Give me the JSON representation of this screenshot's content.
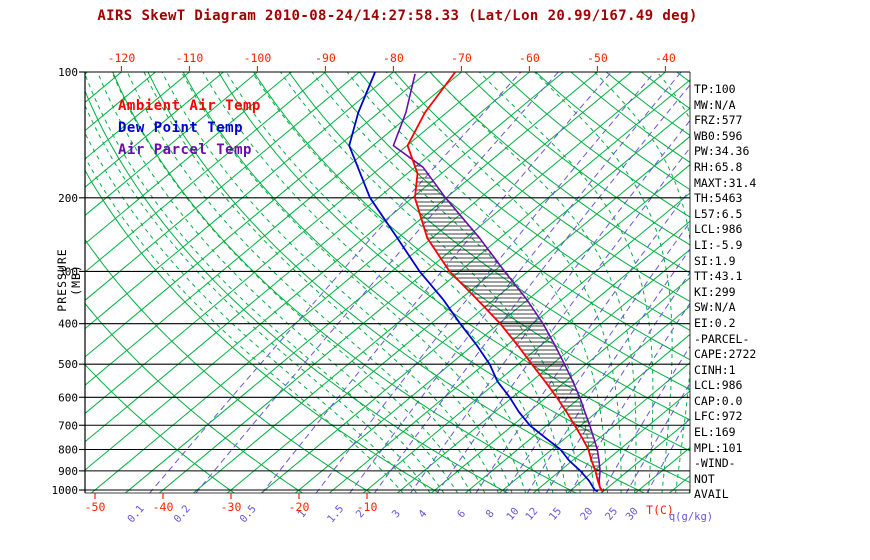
{
  "title": "AIRS SkewT Diagram 2010-08-24/14:27:58.33 (Lat/Lon 20.99/167.49 deg)",
  "legend": {
    "ambient": "Ambient Air Temp",
    "dewpoint": "Dew Point Temp",
    "parcel": "Air Parcel Temp"
  },
  "axes": {
    "pressure_label": "PRESSURE (MB)",
    "temp_label": "T(C)",
    "mixing_label": "q(g/kg)",
    "pressure_ticks": [
      100,
      200,
      300,
      400,
      500,
      600,
      700,
      800,
      900,
      1000
    ],
    "top_temp_ticks": [
      -120,
      -110,
      -100,
      -90,
      -80,
      -70,
      -60,
      -50,
      -40
    ],
    "bottom_temp_ticks": [
      -50,
      -40,
      -30,
      -20,
      -10
    ],
    "mixing_ticks": [
      0.1,
      0.2,
      0.5,
      1,
      1.5,
      2,
      3,
      4,
      6,
      8,
      10,
      12,
      15,
      20,
      25,
      30
    ]
  },
  "stats": [
    "TP:100",
    "MW:N/A",
    "FRZ:577",
    "WB0:596",
    "PW:34.36",
    "RH:65.8",
    "MAXT:31.4",
    "TH:5463",
    "L57:6.5",
    "LCL:986",
    "LI:-5.9",
    "SI:1.9",
    "TT:43.1",
    "KI:299",
    "SW:N/A",
    "EI:0.2",
    "-PARCEL-",
    "CAPE:2722",
    "CINH:1",
    "LCL:986",
    "CAP:0.0",
    "LFC:972",
    "EL:169",
    "MPL:101",
    "-WIND-",
    "NOT",
    "AVAIL"
  ],
  "colors": {
    "title": "#a00000",
    "temp_axis": "#ff2200",
    "ambient": "#ff0000",
    "dewpoint": "#0000cc",
    "parcel": "#6a0dad",
    "isotherm": "#00b040",
    "mixing": "#6655dd",
    "axis": "#000000",
    "stats": "#000000"
  },
  "chart_data": {
    "type": "line",
    "title": "AIRS SkewT Diagram 2010-08-24/14:27:58.33 (Lat/Lon 20.99/167.49 deg)",
    "xlabel": "T(C)",
    "ylabel": "PRESSURE (MB)",
    "y_scale": "log",
    "ylim": [
      1020,
      100
    ],
    "xlim_surface": [
      -55,
      37.5
    ],
    "grid": {
      "isotherm_step_c": 5,
      "dry_adiabat_step_k": 10,
      "moist_adiabat_step_c": 2,
      "skew": "isotherms slant right with height"
    },
    "hatched_region": "CAPE area between ambient temp and parcel curves (LFC 972 mb to EL 169 mb)",
    "series": [
      {
        "name": "Ambient Air Temp",
        "color_key": "ambient",
        "points": [
          [
            1008,
            25.0
          ],
          [
            1000,
            24.4
          ],
          [
            950,
            22.3
          ],
          [
            900,
            20.2
          ],
          [
            850,
            17.8
          ],
          [
            800,
            15.4
          ],
          [
            750,
            12.4
          ],
          [
            700,
            9.1
          ],
          [
            650,
            5.5
          ],
          [
            600,
            1.5
          ],
          [
            550,
            -3.0
          ],
          [
            500,
            -8.0
          ],
          [
            450,
            -13.5
          ],
          [
            400,
            -19.8
          ],
          [
            350,
            -27.5
          ],
          [
            300,
            -36.5
          ],
          [
            250,
            -45.6
          ],
          [
            200,
            -54.6
          ],
          [
            175,
            -58.5
          ],
          [
            150,
            -64.9
          ],
          [
            125,
            -68.2
          ],
          [
            100,
            -70.9
          ]
        ]
      },
      {
        "name": "Dew Point Temp",
        "color_key": "dewpoint",
        "points": [
          [
            1008,
            24.2
          ],
          [
            1000,
            23.5
          ],
          [
            950,
            21.0
          ],
          [
            900,
            18.0
          ],
          [
            850,
            14.5
          ],
          [
            800,
            11.3
          ],
          [
            750,
            7.0
          ],
          [
            700,
            2.5
          ],
          [
            650,
            -1.5
          ],
          [
            600,
            -5.4
          ],
          [
            550,
            -10.0
          ],
          [
            500,
            -14.2
          ],
          [
            450,
            -19.5
          ],
          [
            400,
            -25.7
          ],
          [
            350,
            -32.5
          ],
          [
            300,
            -40.9
          ],
          [
            250,
            -50.0
          ],
          [
            200,
            -61.2
          ],
          [
            150,
            -73.5
          ],
          [
            125,
            -78.0
          ],
          [
            100,
            -82.7
          ]
        ]
      },
      {
        "name": "Air Parcel Temp",
        "color_key": "parcel",
        "points": [
          [
            1008,
            25.0
          ],
          [
            986,
            23.8
          ],
          [
            950,
            22.5
          ],
          [
            900,
            20.9
          ],
          [
            850,
            18.9
          ],
          [
            800,
            16.7
          ],
          [
            750,
            14.1
          ],
          [
            700,
            11.3
          ],
          [
            650,
            8.2
          ],
          [
            600,
            4.9
          ],
          [
            550,
            1.1
          ],
          [
            500,
            -3.2
          ],
          [
            450,
            -8.0
          ],
          [
            400,
            -13.5
          ],
          [
            350,
            -20.2
          ],
          [
            300,
            -28.4
          ],
          [
            250,
            -37.9
          ],
          [
            200,
            -50.1
          ],
          [
            169,
            -58.8
          ],
          [
            150,
            -67.0
          ],
          [
            125,
            -71.0
          ],
          [
            101,
            -76.5
          ]
        ]
      }
    ]
  }
}
